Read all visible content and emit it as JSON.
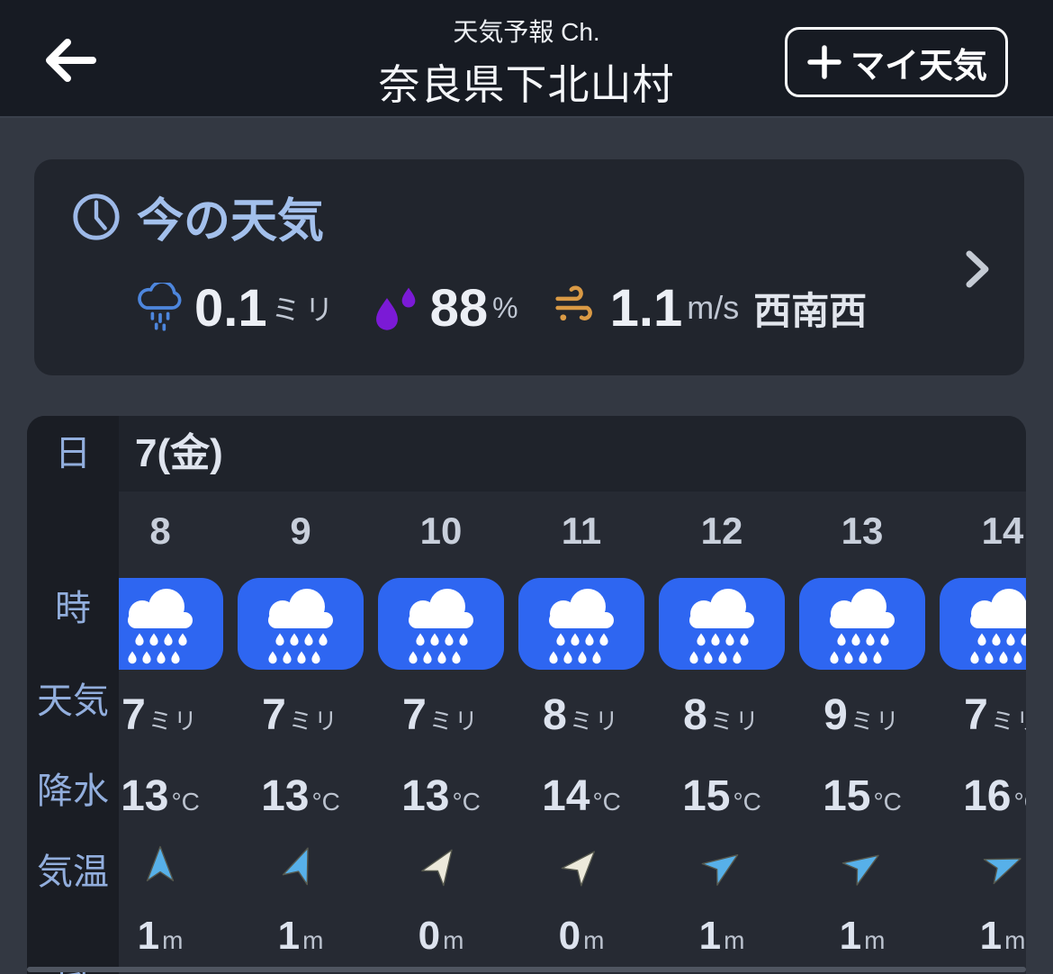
{
  "colors": {
    "header-bg": "#171b23",
    "page-bg": "#333842",
    "card-bg": "#21252d",
    "table-bg": "#262a33",
    "label-col-bg": "#1a1d24",
    "day-row-bg": "#1f232b",
    "accent-blue": "#a3c0ec",
    "label-blue": "#92aedd",
    "text-main": "#eceff5",
    "text-value": "#dde3ee",
    "text-sub": "#c0c7d3",
    "hour-text": "#c8cfdb",
    "icon-tile-blue": "#2e66f1",
    "rain-outline-blue": "#4d86dd",
    "humidity-purple": "#7b1ad6",
    "wind-orange": "#da9a45",
    "arrow-blue": "#57b0e9",
    "arrow-white": "#ece9db",
    "chevron-gray": "#c5cbd4",
    "scrollbar-gray": "#4f5560"
  },
  "header": {
    "app_title": "天気予報 Ch.",
    "location": "奈良県下北山村",
    "my_weather_label": "マイ天気"
  },
  "current_weather": {
    "title": "今の天気",
    "precipitation": {
      "value": "0.1",
      "unit": "ミリ"
    },
    "humidity": {
      "value": "88",
      "unit": "%"
    },
    "wind": {
      "value": "1.1",
      "unit": "m/s",
      "direction": "西南西"
    }
  },
  "forecast_table": {
    "row_labels": {
      "day": "日",
      "hour": "時",
      "weather": "天気",
      "precipitation": "降水",
      "temperature": "気温",
      "wind": "風"
    },
    "day_value": "7(金)",
    "columns": [
      {
        "hour": "8",
        "weather": "rain",
        "precip": "7",
        "precip_unit": "ミリ",
        "temp": "13",
        "temp_unit": "°C",
        "wind": {
          "rotation_deg": 0,
          "color": "blue",
          "speed": "1",
          "unit": "m"
        }
      },
      {
        "hour": "9",
        "weather": "rain",
        "precip": "7",
        "precip_unit": "ミリ",
        "temp": "13",
        "temp_unit": "°C",
        "wind": {
          "rotation_deg": 22,
          "color": "blue",
          "speed": "1",
          "unit": "m"
        }
      },
      {
        "hour": "10",
        "weather": "rain",
        "precip": "7",
        "precip_unit": "ミリ",
        "temp": "13",
        "temp_unit": "°C",
        "wind": {
          "rotation_deg": 34,
          "color": "white",
          "speed": "0",
          "unit": "m"
        }
      },
      {
        "hour": "11",
        "weather": "rain",
        "precip": "8",
        "precip_unit": "ミリ",
        "temp": "14",
        "temp_unit": "°C",
        "wind": {
          "rotation_deg": 42,
          "color": "white",
          "speed": "0",
          "unit": "m"
        }
      },
      {
        "hour": "12",
        "weather": "rain",
        "precip": "8",
        "precip_unit": "ミリ",
        "temp": "15",
        "temp_unit": "°C",
        "wind": {
          "rotation_deg": 55,
          "color": "blue",
          "speed": "1",
          "unit": "m"
        }
      },
      {
        "hour": "13",
        "weather": "rain",
        "precip": "9",
        "precip_unit": "ミリ",
        "temp": "15",
        "temp_unit": "°C",
        "wind": {
          "rotation_deg": 57,
          "color": "blue",
          "speed": "1",
          "unit": "m"
        }
      },
      {
        "hour": "14",
        "weather": "rain",
        "precip": "7",
        "precip_unit": "ミリ",
        "temp": "16",
        "temp_unit": "°C",
        "wind": {
          "rotation_deg": 68,
          "color": "blue",
          "speed": "1",
          "unit": "m"
        }
      }
    ]
  }
}
